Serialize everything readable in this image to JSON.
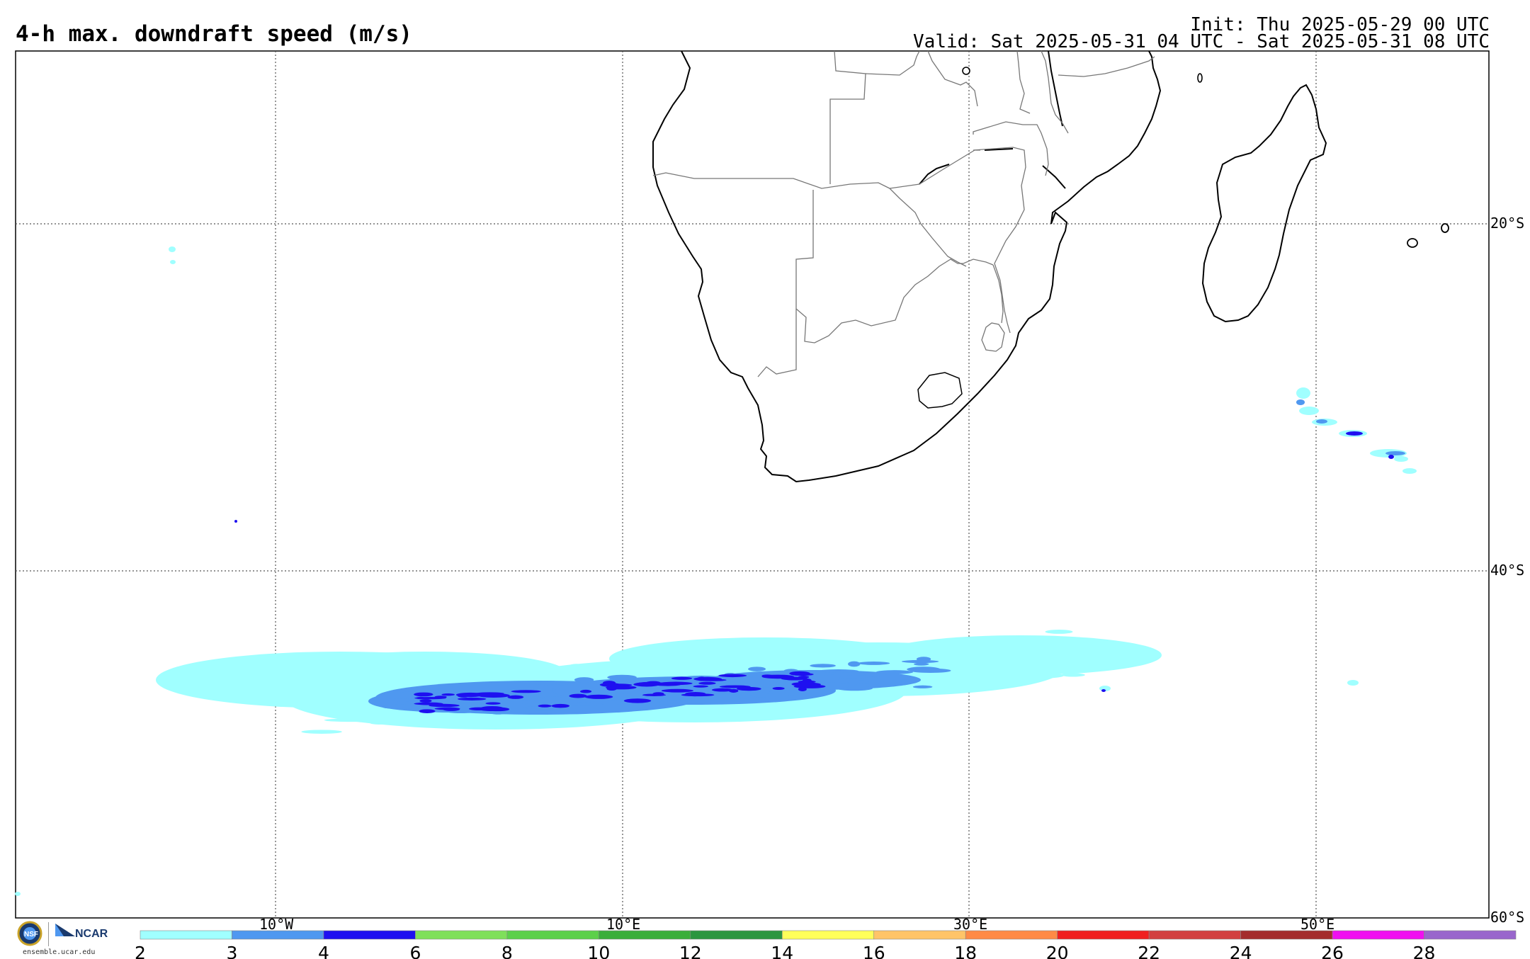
{
  "header": {
    "title": "4-h max. downdraft speed (m/s)",
    "init": "Init: Thu 2025-05-29 00 UTC",
    "valid": "Valid: Sat 2025-05-31 04 UTC - Sat 2025-05-31 08 UTC"
  },
  "map": {
    "lon_labels": [
      "10°W",
      "10°E",
      "30°E",
      "50°E"
    ],
    "lat_labels": [
      "20°S",
      "40°S",
      "60°S"
    ]
  },
  "colorbar": {
    "ticks": [
      "2",
      "3",
      "4",
      "6",
      "8",
      "10",
      "12",
      "14",
      "16",
      "18",
      "20",
      "22",
      "24",
      "26",
      "28"
    ],
    "colors": [
      "#a0ffff",
      "#4f98f0",
      "#1e10f0",
      "#7fe05a",
      "#5cd04a",
      "#3aae3a",
      "#2c9640",
      "#ffff5a",
      "#ffc468",
      "#ff8a46",
      "#f02020",
      "#d24040",
      "#a42d2d",
      "#f010f0",
      "#9966cc"
    ]
  },
  "footer": {
    "url": "ensemble.ucar.edu",
    "ncar": "NCAR",
    "nsf": "NSF"
  },
  "colors": {
    "light_cyan": "#a0ffff",
    "mid_blue": "#4f98f0",
    "dark_blue": "#1e10f0"
  }
}
